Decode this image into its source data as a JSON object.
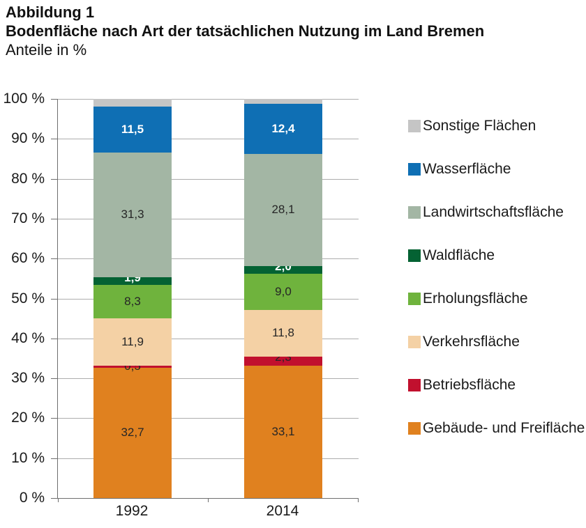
{
  "header": {
    "figure_number": "Abbildung 1",
    "title": "Bodenfläche nach Art der tatsächlichen Nutzung im Land Bremen",
    "subtitle": "Anteile in %"
  },
  "chart_data": {
    "type": "bar",
    "stacked": true,
    "title": "Bodenfläche nach Art der tatsächlichen Nutzung im Land Bremen",
    "unit_label": "Anteile in %",
    "categories": [
      "1992",
      "2014"
    ],
    "y_axis": {
      "min": 0,
      "max": 100,
      "step": 10,
      "tick_labels": [
        "100 %",
        "90 %",
        "80 %",
        "70 %",
        "60 %",
        "50 %",
        "40 %",
        "30 %",
        "20 %",
        "10 %",
        "0 %"
      ]
    },
    "grid": true,
    "legend_position": "right",
    "series": [
      {
        "name": "Gebäude- und Freifläche",
        "color": "#e0811f",
        "label_color": "#262626",
        "label_bold": false,
        "values": [
          32.7,
          33.1
        ],
        "labels": [
          "32,7",
          "33,1"
        ]
      },
      {
        "name": "Betriebsfläche",
        "color": "#c1102e",
        "label_color": "#262626",
        "label_bold": false,
        "values": [
          0.5,
          2.3
        ],
        "labels": [
          "0,5",
          "2,3"
        ]
      },
      {
        "name": "Verkehrsfläche",
        "color": "#f4d1a5",
        "label_color": "#262626",
        "label_bold": false,
        "values": [
          11.9,
          11.8
        ],
        "labels": [
          "11,9",
          "11,8"
        ]
      },
      {
        "name": "Erholungsfläche",
        "color": "#6fb33d",
        "label_color": "#262626",
        "label_bold": false,
        "values": [
          8.3,
          9.0
        ],
        "labels": [
          "8,3",
          "9,0"
        ]
      },
      {
        "name": "Waldfläche",
        "color": "#046233",
        "label_color": "#ffffff",
        "label_bold": true,
        "values": [
          1.9,
          2.0
        ],
        "labels": [
          "1,9",
          "2,0"
        ]
      },
      {
        "name": "Landwirtschaftsfläche",
        "color": "#a3b6a4",
        "label_color": "#262626",
        "label_bold": false,
        "values": [
          31.3,
          28.1
        ],
        "labels": [
          "31,3",
          "28,1"
        ]
      },
      {
        "name": "Wasserfläche",
        "color": "#0f6fb4",
        "label_color": "#ffffff",
        "label_bold": true,
        "values": [
          11.5,
          12.4
        ],
        "labels": [
          "11,5",
          "12,4"
        ]
      },
      {
        "name": "Sonstige Flächen",
        "color": "#c5c5c5",
        "label_color": "#262626",
        "label_bold": false,
        "values": [
          1.9,
          1.3
        ],
        "labels": [
          "",
          ""
        ]
      }
    ]
  }
}
